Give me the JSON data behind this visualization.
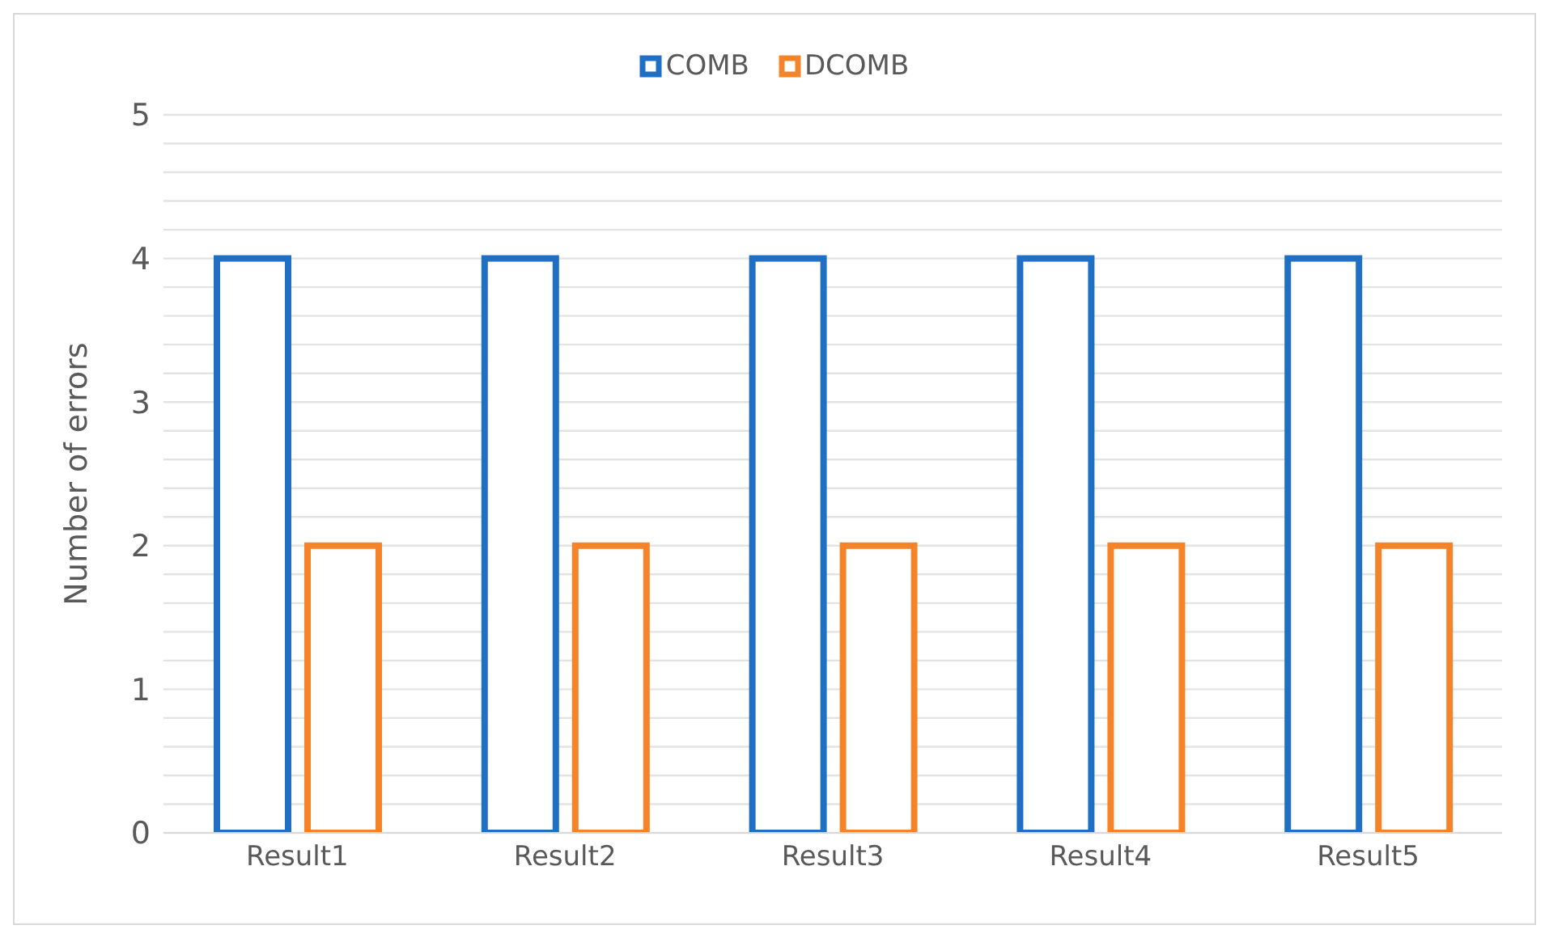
{
  "chart_data": {
    "type": "bar",
    "ylabel": "Number of errors",
    "categories": [
      "Result1",
      "Result2",
      "Result3",
      "Result4",
      "Result5"
    ],
    "series": [
      {
        "name": "COMB",
        "color": "#1f6fc5",
        "values": [
          4,
          4,
          4,
          4,
          4
        ]
      },
      {
        "name": "DCOMB",
        "color": "#f5832a",
        "values": [
          2,
          2,
          2,
          2,
          2
        ]
      }
    ],
    "ylim": [
      0,
      5
    ],
    "yticks": [
      0,
      {
        "value": 0.2,
        "label": null
      },
      {
        "value": 0.4,
        "label": null
      },
      {
        "value": 0.6,
        "label": null
      },
      {
        "value": 0.8,
        "label": null
      },
      1,
      {
        "value": 1.2,
        "label": null
      },
      {
        "value": 1.4,
        "label": null
      },
      {
        "value": 1.6,
        "label": null
      },
      {
        "value": 1.8,
        "label": null
      },
      2,
      {
        "value": 2.2,
        "label": null
      },
      {
        "value": 2.4,
        "label": null
      },
      {
        "value": 2.6,
        "label": null
      },
      {
        "value": 2.8,
        "label": null
      },
      3,
      {
        "value": 3.2,
        "label": null
      },
      {
        "value": 3.4,
        "label": null
      },
      {
        "value": 3.6,
        "label": null
      },
      {
        "value": 3.8,
        "label": null
      },
      4,
      {
        "value": 4.2,
        "label": null
      },
      {
        "value": 4.4,
        "label": null
      },
      {
        "value": 4.6,
        "label": null
      },
      {
        "value": 4.8,
        "label": null
      },
      5
    ],
    "grid": "y",
    "legend": "top"
  }
}
